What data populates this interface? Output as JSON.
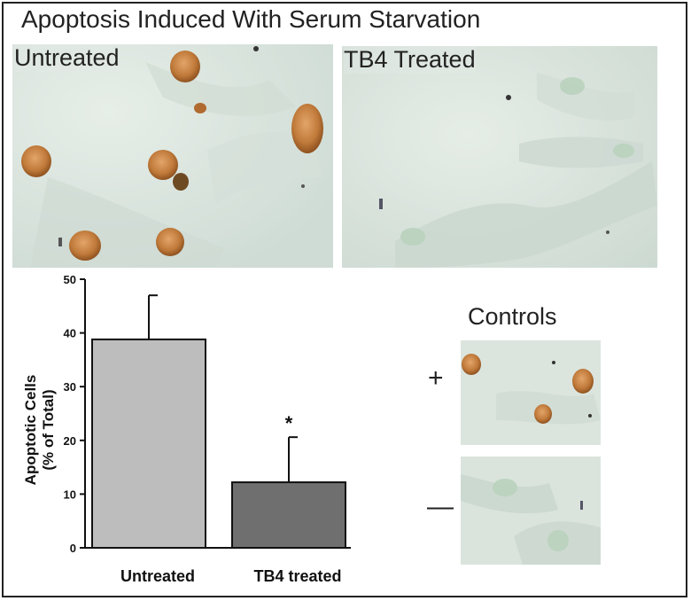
{
  "title": "Apoptosis Induced With Serum Starvation",
  "panels": {
    "untreated_label": "Untreated",
    "treated_label": "TB4 Treated"
  },
  "controls": {
    "title": "Controls",
    "plus": "+",
    "minus": "—"
  },
  "colors": {
    "background_tissue": "#dde7df",
    "stained_nucleus": "#c07a3a",
    "bar_untreated": "#bdbdbd",
    "bar_treated": "#6f6f6f"
  },
  "chart_data": {
    "type": "bar",
    "categories": [
      "Untreated",
      "TB4 treated"
    ],
    "values": [
      38.8,
      12.2
    ],
    "error_plus": [
      8.2,
      8.4
    ],
    "significance": [
      "",
      "*"
    ],
    "ylabel_line1": "Apoptotic Cells",
    "ylabel_line2": "(% of Total)",
    "ylim": [
      0,
      50
    ],
    "yticks": [
      0,
      10,
      20,
      30,
      40,
      50
    ]
  }
}
